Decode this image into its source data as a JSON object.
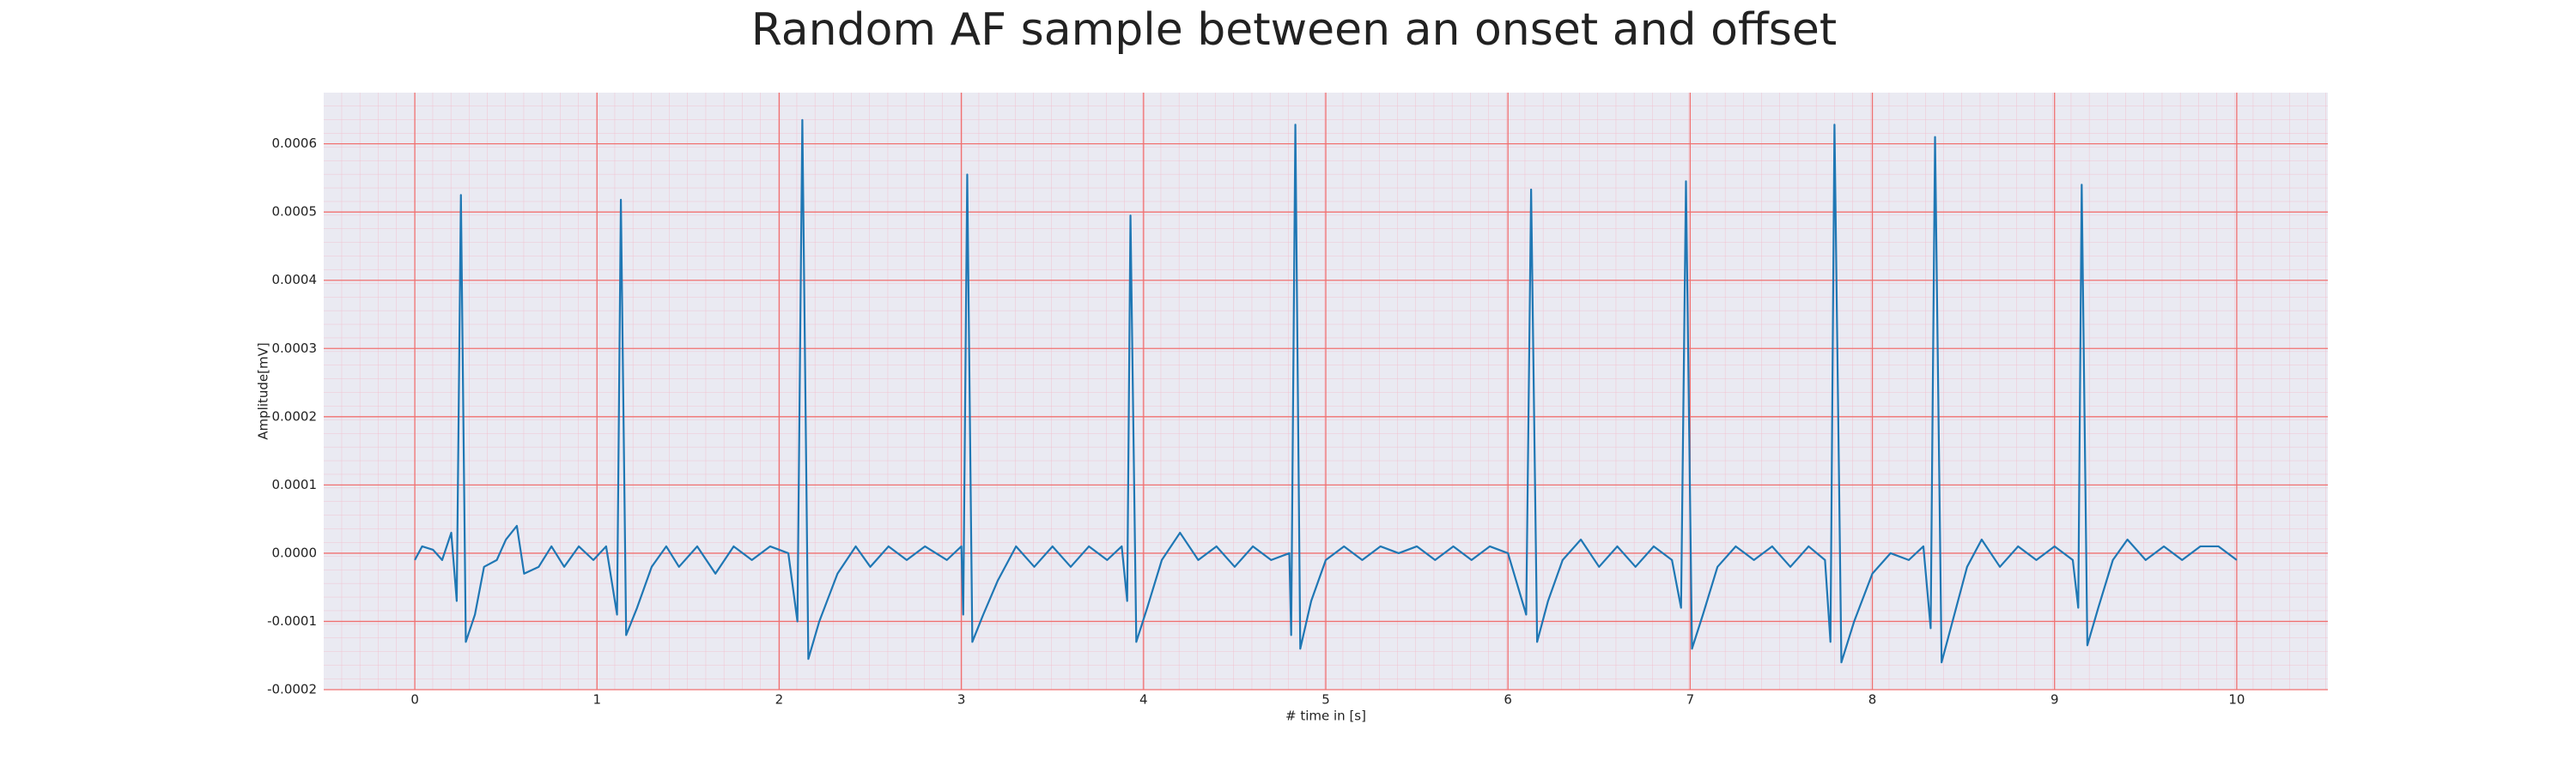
{
  "chart_data": {
    "type": "line",
    "title": "Random AF sample between an onset and offset",
    "x_label": "# time in [s]",
    "y_label": "Amplitude[mV]",
    "xlim": [
      -0.5,
      10.5
    ],
    "ylim": [
      -0.0002,
      0.000675
    ],
    "xticks": [
      0,
      1,
      2,
      3,
      4,
      5,
      6,
      7,
      8,
      9,
      10
    ],
    "yticks": [
      {
        "value": -0.0002,
        "label": "-0.0002"
      },
      {
        "value": -0.0001,
        "label": "-0.0001"
      },
      {
        "value": 0,
        "label": "0.0000"
      },
      {
        "value": 0.0001,
        "label": "0.0001"
      },
      {
        "value": 0.0002,
        "label": "0.0002"
      },
      {
        "value": 0.0003,
        "label": "0.0003"
      },
      {
        "value": 0.0004,
        "label": "0.0004"
      },
      {
        "value": 0.0005,
        "label": "0.0005"
      },
      {
        "value": 0.0006,
        "label": "0.0006"
      }
    ],
    "grid": true,
    "background": "#eaeaf2",
    "x": [
      0,
      0.04,
      0.1,
      0.15,
      0.2,
      0.23,
      0.253,
      0.28,
      0.33,
      0.38,
      0.45,
      0.5,
      0.56,
      0.6,
      0.68,
      0.75,
      0.82,
      0.9,
      0.98,
      1.05,
      1.11,
      1.131,
      1.16,
      1.22,
      1.3,
      1.38,
      1.45,
      1.55,
      1.65,
      1.75,
      1.85,
      1.95,
      2.05,
      2.1,
      2.127,
      2.16,
      2.22,
      2.32,
      2.42,
      2.5,
      2.6,
      2.7,
      2.8,
      2.92,
      3.0,
      3.01,
      3.032,
      3.06,
      3.12,
      3.2,
      3.3,
      3.4,
      3.5,
      3.6,
      3.7,
      3.8,
      3.88,
      3.91,
      3.928,
      3.96,
      4.02,
      4.1,
      4.2,
      4.3,
      4.4,
      4.5,
      4.6,
      4.7,
      4.8,
      4.81,
      4.833,
      4.86,
      4.92,
      5.0,
      5.1,
      5.2,
      5.3,
      5.4,
      5.5,
      5.6,
      5.7,
      5.8,
      5.9,
      6.0,
      6.1,
      6.127,
      6.16,
      6.22,
      6.3,
      6.4,
      6.5,
      6.6,
      6.7,
      6.8,
      6.9,
      6.95,
      6.977,
      7.01,
      7.07,
      7.15,
      7.25,
      7.35,
      7.45,
      7.55,
      7.65,
      7.74,
      7.77,
      7.792,
      7.83,
      7.9,
      8.0,
      8.1,
      8.2,
      8.28,
      8.32,
      8.344,
      8.38,
      8.44,
      8.52,
      8.6,
      8.7,
      8.8,
      8.9,
      9.0,
      9.1,
      9.13,
      9.149,
      9.18,
      9.24,
      9.32,
      9.4,
      9.5,
      9.6,
      9.7,
      9.8,
      9.9,
      10.0
    ],
    "series": [
      {
        "color": "#1f77b4",
        "values": [
          -1e-05,
          1e-05,
          5e-06,
          -1e-05,
          3e-05,
          -7e-05,
          0.000525,
          -0.00013,
          -9e-05,
          -2e-05,
          -1e-05,
          2e-05,
          4e-05,
          -3e-05,
          -2e-05,
          1e-05,
          -2e-05,
          1e-05,
          -1e-05,
          1e-05,
          -9e-05,
          0.000518,
          -0.00012,
          -8e-05,
          -2e-05,
          1e-05,
          -2e-05,
          1e-05,
          -3e-05,
          1e-05,
          -1e-05,
          1e-05,
          0,
          -0.0001,
          0.000635,
          -0.000155,
          -0.0001,
          -3e-05,
          1e-05,
          -2e-05,
          1e-05,
          -1e-05,
          1e-05,
          -1e-05,
          1e-05,
          -9e-05,
          0.000555,
          -0.00013,
          -9e-05,
          -4e-05,
          1e-05,
          -2e-05,
          1e-05,
          -2e-05,
          1e-05,
          -1e-05,
          1e-05,
          -7e-05,
          0.000495,
          -0.00013,
          -8e-05,
          -1e-05,
          3e-05,
          -1e-05,
          1e-05,
          -2e-05,
          1e-05,
          -1e-05,
          0,
          -0.00012,
          0.000628,
          -0.00014,
          -7e-05,
          -1e-05,
          1e-05,
          -1e-05,
          1e-05,
          0,
          1e-05,
          -1e-05,
          1e-05,
          -1e-05,
          1e-05,
          0,
          -9e-05,
          0.000533,
          -0.00013,
          -7e-05,
          -1e-05,
          2e-05,
          -2e-05,
          1e-05,
          -2e-05,
          1e-05,
          -1e-05,
          -8e-05,
          0.000545,
          -0.00014,
          -9e-05,
          -2e-05,
          1e-05,
          -1e-05,
          1e-05,
          -2e-05,
          1e-05,
          -1e-05,
          -0.00013,
          0.000628,
          -0.00016,
          -0.0001,
          -3e-05,
          0,
          -1e-05,
          1e-05,
          -0.00011,
          0.00061,
          -0.00016,
          -0.0001,
          -2e-05,
          2e-05,
          -2e-05,
          1e-05,
          -1e-05,
          1e-05,
          -1e-05,
          -8e-05,
          0.00054,
          -0.000135,
          -8e-05,
          -1e-05,
          2e-05,
          -1e-05,
          1e-05,
          -1e-05,
          1e-05,
          1e-05,
          -1e-05
        ]
      }
    ]
  }
}
